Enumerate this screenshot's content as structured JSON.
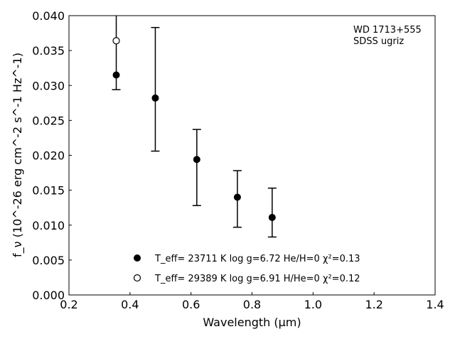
{
  "chart_data": {
    "type": "scatter",
    "annotation": [
      "WD 1713+555",
      "SDSS ugriz"
    ],
    "xlabel": "Wavelength (μm)",
    "ylabel": "f_ν (10^-26 erg cm^-2 s^-1 Hz^-1)",
    "xlim": [
      0.2,
      1.4
    ],
    "ylim": [
      0.0,
      0.04
    ],
    "xticks": [
      "0.2",
      "0.4",
      "0.6",
      "0.8",
      "1.0",
      "1.2",
      "1.4"
    ],
    "yticks": [
      "0.000",
      "0.005",
      "0.010",
      "0.015",
      "0.020",
      "0.025",
      "0.030",
      "0.035",
      "0.040"
    ],
    "grid": false,
    "legend_position": "bottom-center",
    "series": [
      {
        "name": "T_eff= 23711 K  log g=6.72  He/H=0  χ²=0.13",
        "marker": "filled-circle",
        "color": "#000000",
        "points": [
          {
            "x": 0.355,
            "y": 0.0315,
            "err_low": 0.0294,
            "err_high": 0.0405
          },
          {
            "x": 0.483,
            "y": 0.0282,
            "err_low": 0.0206,
            "err_high": 0.0383
          },
          {
            "x": 0.619,
            "y": 0.0194,
            "err_low": 0.0128,
            "err_high": 0.0237
          },
          {
            "x": 0.752,
            "y": 0.014,
            "err_low": 0.0097,
            "err_high": 0.0178
          },
          {
            "x": 0.866,
            "y": 0.0111,
            "err_low": 0.0083,
            "err_high": 0.0153
          }
        ]
      },
      {
        "name": "T_eff= 29389 K  log g=6.91  H/He=0  χ²=0.12",
        "marker": "open-circle",
        "color": "#000000",
        "points": [
          {
            "x": 0.355,
            "y": 0.0364
          }
        ]
      }
    ]
  }
}
